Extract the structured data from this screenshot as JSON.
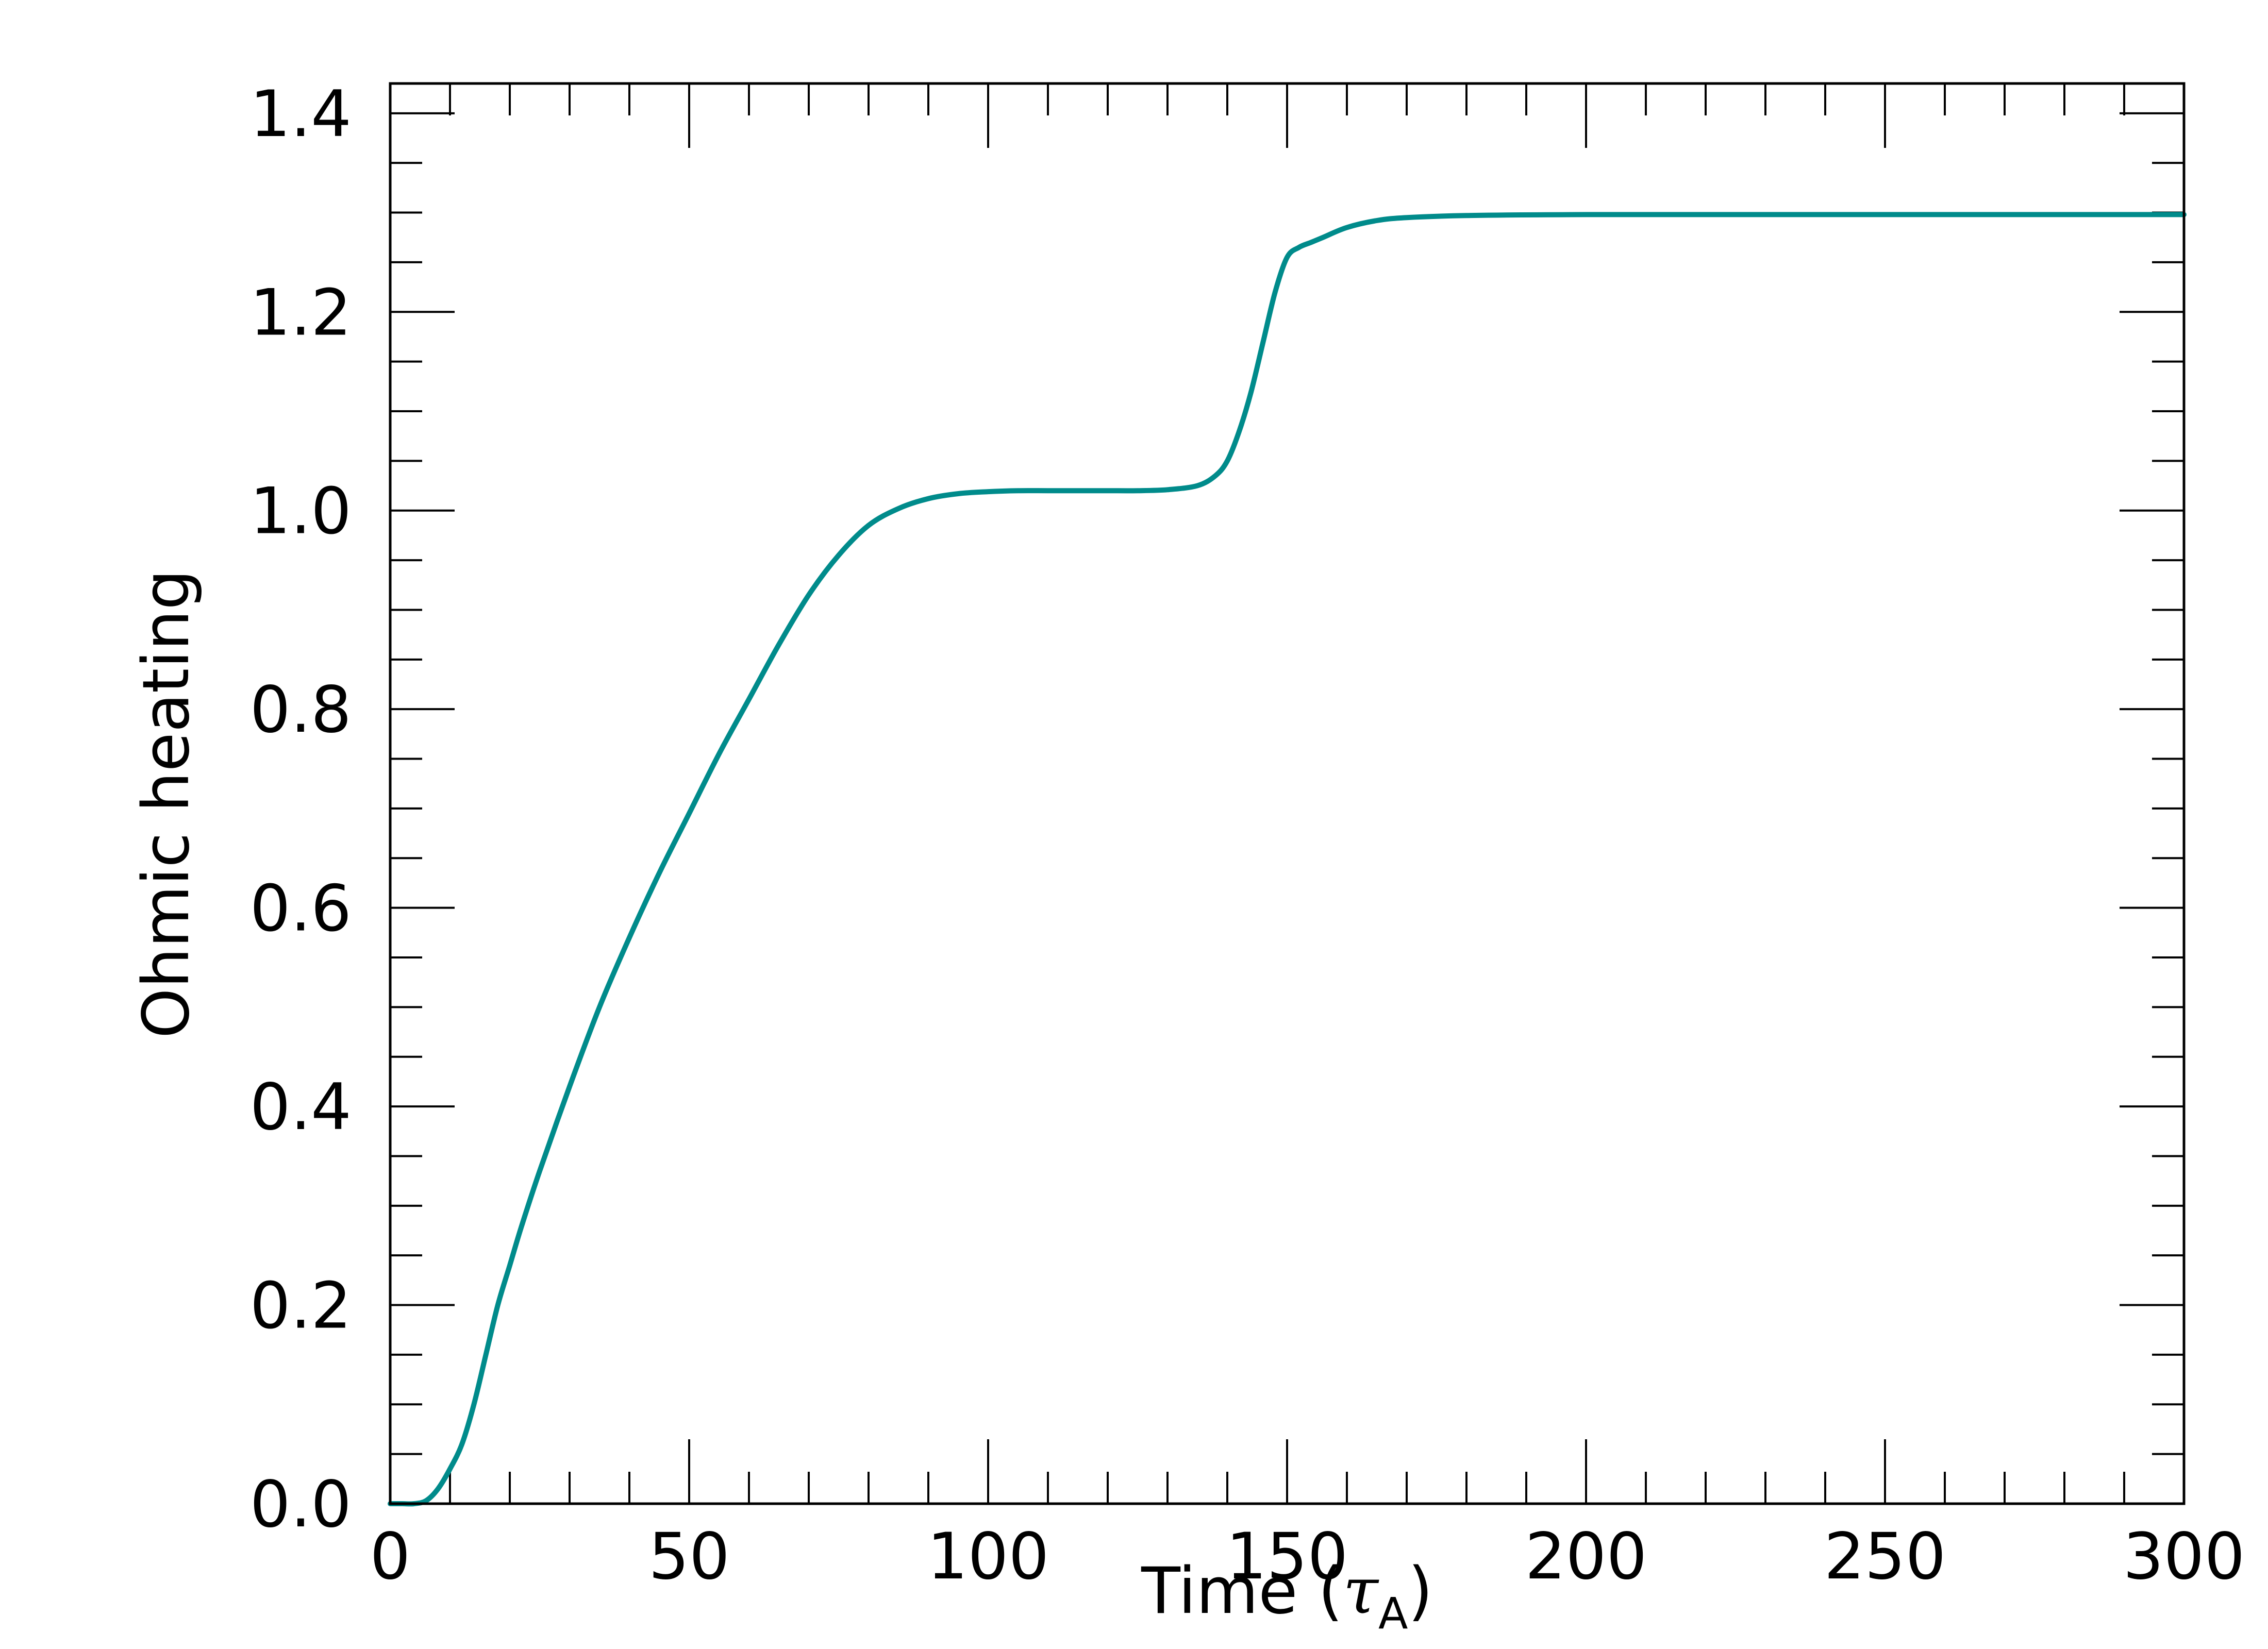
{
  "chart_data": {
    "type": "line",
    "title": "",
    "xlabel": "Time (",
    "xlabel_symbol": "τ",
    "xlabel_subscript": "A",
    "xlabel_close": ")",
    "ylabel": "Ohmic heating",
    "xlim": [
      0,
      300
    ],
    "ylim": [
      0,
      1.43
    ],
    "xticks": [
      0,
      50,
      100,
      150,
      200,
      250,
      300
    ],
    "xtick_labels": [
      "0",
      "50",
      "100",
      "150",
      "200",
      "250",
      "300"
    ],
    "yticks": [
      0,
      0.2,
      0.4,
      0.6,
      0.8,
      1.0,
      1.2,
      1.4
    ],
    "ytick_labels": [
      "0.0",
      "0.2",
      "0.4",
      "0.6",
      "0.8",
      "1.0",
      "1.2",
      "1.4"
    ],
    "x_minor_step": 10,
    "y_minor_step": 0.05,
    "grid": false,
    "legend": "none",
    "series": [
      {
        "color": "#008b8b",
        "x": [
          0,
          2,
          4,
          6,
          8,
          10,
          12,
          14,
          16,
          18,
          20,
          22,
          25,
          30,
          35,
          40,
          45,
          50,
          55,
          60,
          65,
          70,
          75,
          80,
          85,
          90,
          95,
          100,
          105,
          110,
          115,
          120,
          125,
          130,
          135,
          138,
          140,
          142,
          144,
          146,
          148,
          150,
          152,
          154,
          156,
          160,
          165,
          170,
          180,
          200,
          250,
          300
        ],
        "y": [
          0.0,
          0.0,
          0.0,
          0.003,
          0.015,
          0.035,
          0.06,
          0.1,
          0.15,
          0.2,
          0.24,
          0.28,
          0.335,
          0.42,
          0.5,
          0.57,
          0.635,
          0.695,
          0.755,
          0.81,
          0.865,
          0.915,
          0.955,
          0.985,
          1.002,
          1.012,
          1.017,
          1.019,
          1.02,
          1.02,
          1.02,
          1.02,
          1.02,
          1.021,
          1.025,
          1.035,
          1.05,
          1.08,
          1.12,
          1.17,
          1.22,
          1.255,
          1.265,
          1.27,
          1.275,
          1.285,
          1.292,
          1.295,
          1.297,
          1.298,
          1.298,
          1.298
        ]
      }
    ]
  }
}
